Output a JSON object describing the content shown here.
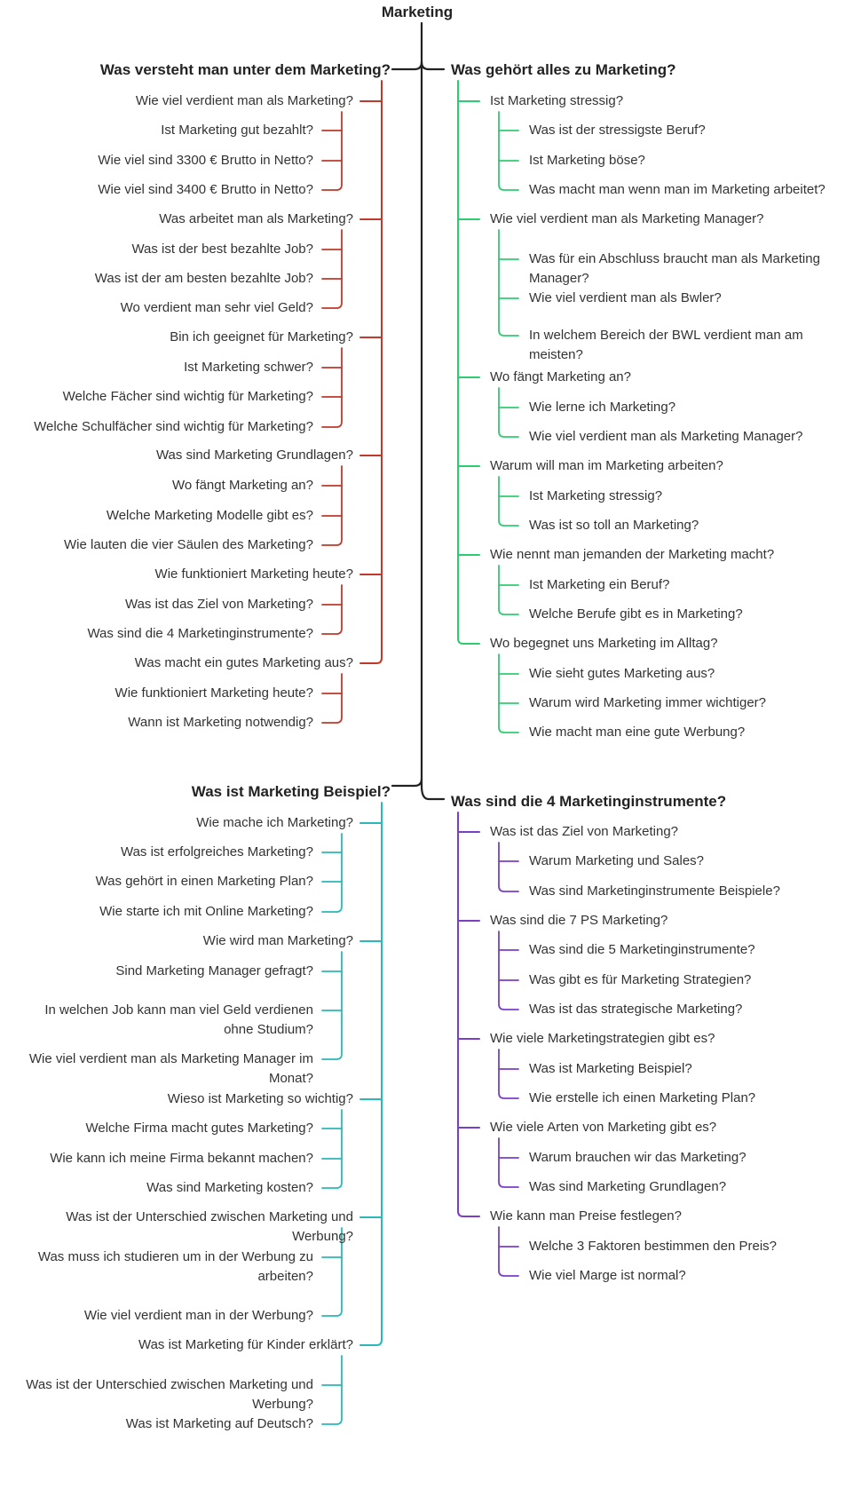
{
  "title": "Marketing",
  "colors": {
    "trunk": "#222222",
    "red": "#c0392b",
    "green": "#2ecc71",
    "teal": "#2bb8b8",
    "purple": "#7b3fc4"
  },
  "sections": [
    {
      "id": "tl",
      "color": "red",
      "side": "left",
      "heading": "Was versteht man unter dem Marketing?",
      "groups": [
        {
          "label": "Wie viel verdient man als Marketing?",
          "children": [
            "Ist Marketing gut bezahlt?",
            "Wie viel sind 3300 € Brutto in Netto?",
            "Wie viel sind 3400 € Brutto in Netto?"
          ]
        },
        {
          "label": "Was arbeitet man als Marketing?",
          "children": [
            "Was ist der best bezahlte Job?",
            "Was ist der am besten bezahlte Job?",
            "Wo verdient man sehr viel Geld?"
          ]
        },
        {
          "label": "Bin ich geeignet für Marketing?",
          "children": [
            "Ist Marketing schwer?",
            "Welche Fächer sind wichtig für Marketing?",
            "Welche Schulfächer sind wichtig für Marketing?"
          ]
        },
        {
          "label": "Was sind Marketing Grundlagen?",
          "children": [
            "Wo fängt Marketing an?",
            "Welche Marketing Modelle gibt es?",
            "Wie lauten die vier Säulen des Marketing?"
          ]
        },
        {
          "label": "Wie funktioniert Marketing heute?",
          "children": [
            "Was ist das Ziel von Marketing?",
            "Was sind die 4 Marketinginstrumente?"
          ]
        },
        {
          "label": "Was macht ein gutes Marketing aus?",
          "children": [
            "Wie funktioniert Marketing heute?",
            "Wann ist Marketing notwendig?"
          ]
        }
      ]
    },
    {
      "id": "tr",
      "color": "green",
      "side": "right",
      "heading": "Was gehört alles zu Marketing?",
      "groups": [
        {
          "label": "Ist Marketing stressig?",
          "children": [
            "Was ist der stressigste Beruf?",
            "Ist Marketing böse?",
            "Was macht man wenn man im Marketing arbeitet?"
          ]
        },
        {
          "label": "Wie viel verdient man als Marketing Manager?",
          "children": [
            "Was für ein Abschluss braucht man als Marketing Manager?",
            "Wie viel verdient man als Bwler?",
            "In welchem Bereich der BWL verdient man am meisten?"
          ]
        },
        {
          "label": "Wo fängt Marketing an?",
          "children": [
            "Wie lerne ich Marketing?",
            "Wie viel verdient man als Marketing Manager?"
          ]
        },
        {
          "label": "Warum will man im Marketing arbeiten?",
          "children": [
            "Ist Marketing stressig?",
            "Was ist so toll an Marketing?"
          ]
        },
        {
          "label": "Wie nennt man jemanden der Marketing macht?",
          "children": [
            "Ist Marketing ein Beruf?",
            "Welche Berufe gibt es in Marketing?"
          ]
        },
        {
          "label": "Wo begegnet uns Marketing im Alltag?",
          "children": [
            "Wie sieht gutes Marketing aus?",
            "Warum wird Marketing immer wichtiger?",
            "Wie macht man eine gute Werbung?"
          ]
        }
      ]
    },
    {
      "id": "bl",
      "color": "teal",
      "side": "left",
      "heading": "Was ist Marketing Beispiel?",
      "groups": [
        {
          "label": "Wie mache ich Marketing?",
          "children": [
            "Was ist erfolgreiches Marketing?",
            "Was gehört in einen Marketing Plan?",
            "Wie starte ich mit Online Marketing?"
          ]
        },
        {
          "label": "Wie wird man Marketing?",
          "children": [
            "Sind Marketing Manager gefragt?",
            "In welchen Job kann man viel Geld verdienen ohne Studium?",
            "Wie viel verdient man als Marketing Manager im Monat?"
          ]
        },
        {
          "label": "Wieso ist Marketing so wichtig?",
          "children": [
            "Welche Firma macht gutes Marketing?",
            "Wie kann ich meine Firma bekannt machen?",
            "Was sind Marketing kosten?"
          ]
        },
        {
          "label": "Was ist der Unterschied zwischen Marketing und Werbung?",
          "children": [
            "Was muss ich studieren um in der Werbung zu arbeiten?",
            "Wie viel verdient man in der Werbung?"
          ]
        },
        {
          "label": "Was ist Marketing für Kinder erklärt?",
          "children": [
            "Was ist der Unterschied zwischen Marketing und Werbung?",
            "Was ist Marketing auf Deutsch?"
          ]
        }
      ]
    },
    {
      "id": "br",
      "color": "purple",
      "side": "right",
      "heading": "Was sind die 4 Marketinginstrumente?",
      "groups": [
        {
          "label": "Was ist das Ziel von Marketing?",
          "children": [
            "Warum Marketing und Sales?",
            "Was sind Marketinginstrumente Beispiele?"
          ]
        },
        {
          "label": "Was sind die 7 PS Marketing?",
          "children": [
            "Was sind die 5 Marketinginstrumente?",
            "Was gibt es für Marketing Strategien?",
            "Was ist das strategische Marketing?"
          ]
        },
        {
          "label": "Wie viele Marketingstrategien gibt es?",
          "children": [
            "Was ist Marketing Beispiel?",
            "Wie erstelle ich einen Marketing Plan?"
          ]
        },
        {
          "label": "Wie viele Arten von Marketing gibt es?",
          "children": [
            "Warum brauchen wir das Marketing?",
            "Was sind Marketing Grundlagen?"
          ]
        },
        {
          "label": "Wie kann man Preise festlegen?",
          "children": [
            "Welche 3 Faktoren bestimmen den Preis?",
            "Wie viel Marge ist normal?"
          ]
        }
      ]
    }
  ]
}
